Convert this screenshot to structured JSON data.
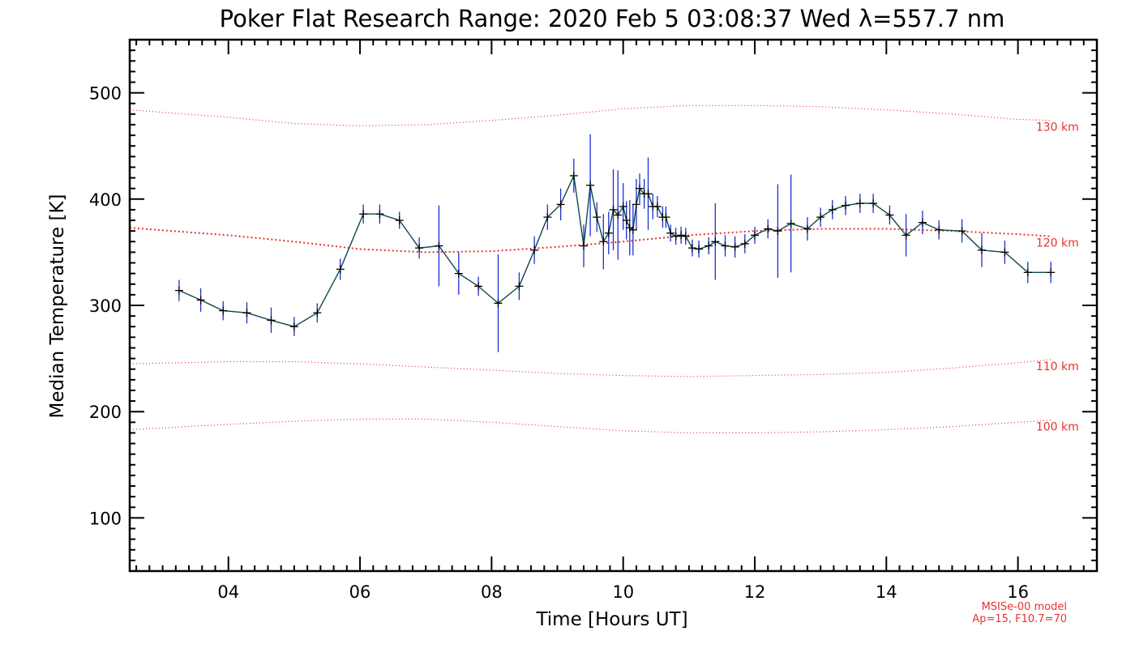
{
  "chart_data": {
    "type": "line",
    "title": "Poker Flat Research Range: 2020 Feb  5 03:08:37 Wed λ=557.7 nm",
    "xlabel": "Time [Hours UT]",
    "ylabel": "Median Temperature [K]",
    "xlim": [
      2.5,
      17.2
    ],
    "ylim": [
      50,
      550
    ],
    "x_ticks": [
      4,
      6,
      8,
      10,
      12,
      14,
      16
    ],
    "x_tick_labels": [
      "04",
      "06",
      "08",
      "10",
      "12",
      "14",
      "16"
    ],
    "y_ticks": [
      100,
      200,
      300,
      400,
      500
    ],
    "y_tick_labels": [
      "100",
      "200",
      "300",
      "400",
      "500"
    ],
    "grid": false,
    "colors": {
      "line": "#0d4a4a",
      "error_bar": "#1a2fd6",
      "marker": "#000000",
      "model": "#e8312f"
    },
    "series": [
      {
        "x": [
          3.25,
          3.58,
          3.92,
          4.28,
          4.65,
          5.0,
          5.35,
          5.7,
          6.05,
          6.3,
          6.6,
          6.9,
          7.2,
          7.5,
          7.8,
          8.1,
          8.42,
          8.65,
          8.85,
          9.05,
          9.25,
          9.4,
          9.5,
          9.6,
          9.7,
          9.78,
          9.85,
          9.92,
          10.0,
          10.05,
          10.1,
          10.15,
          10.2,
          10.25,
          10.32,
          10.38,
          10.45,
          10.52,
          10.6,
          10.65,
          10.72,
          10.8,
          10.88,
          10.95,
          11.05,
          11.15,
          11.3,
          11.4,
          11.55,
          11.7,
          11.85,
          12.0,
          12.2,
          12.35,
          12.55,
          12.8,
          13.0,
          13.18,
          13.38,
          13.6,
          13.8,
          14.05,
          14.3,
          14.55,
          14.8,
          15.15,
          15.45,
          15.8,
          16.15,
          16.5
        ],
        "y": [
          314,
          305,
          295,
          293,
          286,
          280,
          293,
          334,
          386,
          386,
          380,
          354,
          356,
          330,
          318,
          302,
          318,
          352,
          383,
          395,
          422,
          356,
          413,
          383,
          360,
          368,
          390,
          385,
          393,
          380,
          373,
          371,
          395,
          410,
          405,
          405,
          393,
          393,
          383,
          383,
          368,
          365,
          366,
          365,
          354,
          353,
          356,
          360,
          356,
          355,
          358,
          366,
          372,
          370,
          377,
          372,
          383,
          390,
          394,
          396,
          396,
          385,
          366,
          378,
          371,
          370,
          352,
          350,
          331,
          331
        ],
        "error": [
          10,
          11,
          9,
          10,
          12,
          9,
          9,
          10,
          9,
          9,
          8,
          10,
          38,
          20,
          9,
          46,
          13,
          13,
          12,
          15,
          16,
          20,
          48,
          14,
          26,
          20,
          38,
          42,
          22,
          18,
          26,
          24,
          24,
          14,
          14,
          34,
          12,
          10,
          10,
          10,
          8,
          8,
          8,
          8,
          8,
          8,
          8,
          36,
          10,
          10,
          9,
          8,
          9,
          44,
          46,
          11,
          9,
          9,
          9,
          9,
          9,
          9,
          20,
          11,
          9,
          11,
          16,
          11,
          10,
          10
        ]
      }
    ],
    "model_curves": [
      {
        "label": "130 km",
        "x": [
          2.5,
          4.0,
          5.0,
          6.0,
          7.0,
          8.0,
          9.0,
          10.0,
          11.0,
          12.0,
          13.0,
          14.0,
          15.0,
          16.0,
          16.5
        ],
        "y": [
          484,
          477,
          471,
          469,
          470,
          474,
          479,
          485,
          488,
          488,
          487,
          484,
          480,
          475,
          474
        ]
      },
      {
        "label": "120 km",
        "x": [
          2.5,
          4.0,
          5.0,
          6.0,
          7.0,
          8.0,
          9.0,
          10.0,
          11.0,
          12.0,
          13.0,
          14.0,
          15.0,
          16.0,
          16.5
        ],
        "y": [
          373,
          366,
          360,
          353,
          350,
          351,
          355,
          360,
          366,
          370,
          372,
          372,
          370,
          367,
          365
        ]
      },
      {
        "label": "110 km",
        "x": [
          2.5,
          4.0,
          5.0,
          6.0,
          7.0,
          8.0,
          9.0,
          10.0,
          11.0,
          12.0,
          13.0,
          14.0,
          15.0,
          16.0,
          16.5
        ],
        "y": [
          245,
          247,
          247,
          245,
          242,
          239,
          236,
          234,
          233,
          234,
          235,
          237,
          241,
          246,
          249
        ]
      },
      {
        "label": "100 km",
        "x": [
          2.5,
          4.0,
          5.0,
          6.0,
          7.0,
          8.0,
          9.0,
          10.0,
          11.0,
          12.0,
          13.0,
          14.0,
          15.0,
          16.0,
          16.5
        ],
        "y": [
          183,
          188,
          191,
          193,
          193,
          190,
          186,
          182,
          180,
          180,
          181,
          183,
          186,
          190,
          192
        ]
      }
    ],
    "notes": [
      "MSISe-00 model",
      "Ap=15, F10.7=70"
    ]
  }
}
